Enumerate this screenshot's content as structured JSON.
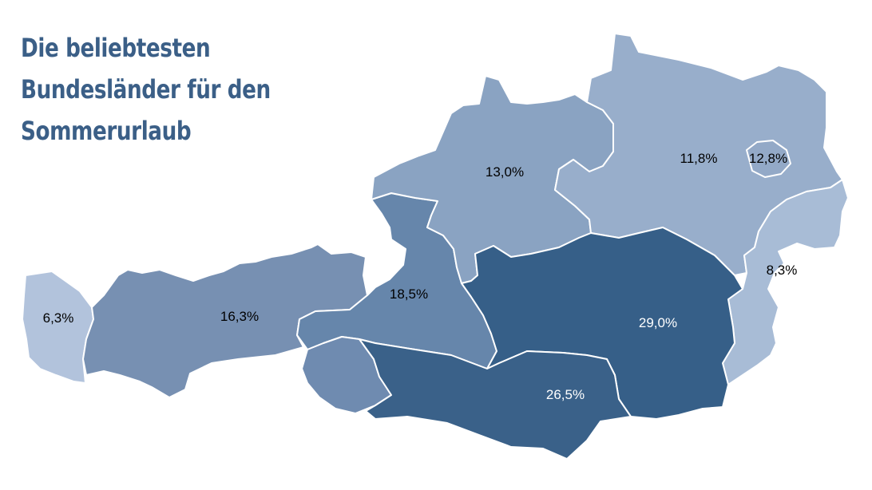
{
  "title": {
    "line1": "Die beliebtesten",
    "line2": "Bundesländer für den",
    "line3": "Sommerurlaub"
  },
  "regions": [
    {
      "value_label": "6,3%",
      "color": "#b2c3dc",
      "text_color": "#000000"
    },
    {
      "value_label": "16,3%",
      "color": "#7790b2",
      "text_color": "#000000"
    },
    {
      "value_label": "18,5%",
      "color": "#6686ab",
      "text_color": "#000000"
    },
    {
      "value_label": "",
      "color": "#6f8bb0",
      "text_color": "#000000"
    },
    {
      "value_label": "13,0%",
      "color": "#8aa3c2",
      "text_color": "#000000"
    },
    {
      "value_label": "11,8%",
      "color": "#98aecb",
      "text_color": "#000000"
    },
    {
      "value_label": "12,8%",
      "color": "#93a9c7",
      "text_color": "#000000"
    },
    {
      "value_label": "8,3%",
      "color": "#a8bcd6",
      "text_color": "#000000"
    },
    {
      "value_label": "29,0%",
      "color": "#365f88",
      "text_color": "#ffffff"
    },
    {
      "value_label": "26,5%",
      "color": "#3a6189",
      "text_color": "#ffffff"
    }
  ]
}
